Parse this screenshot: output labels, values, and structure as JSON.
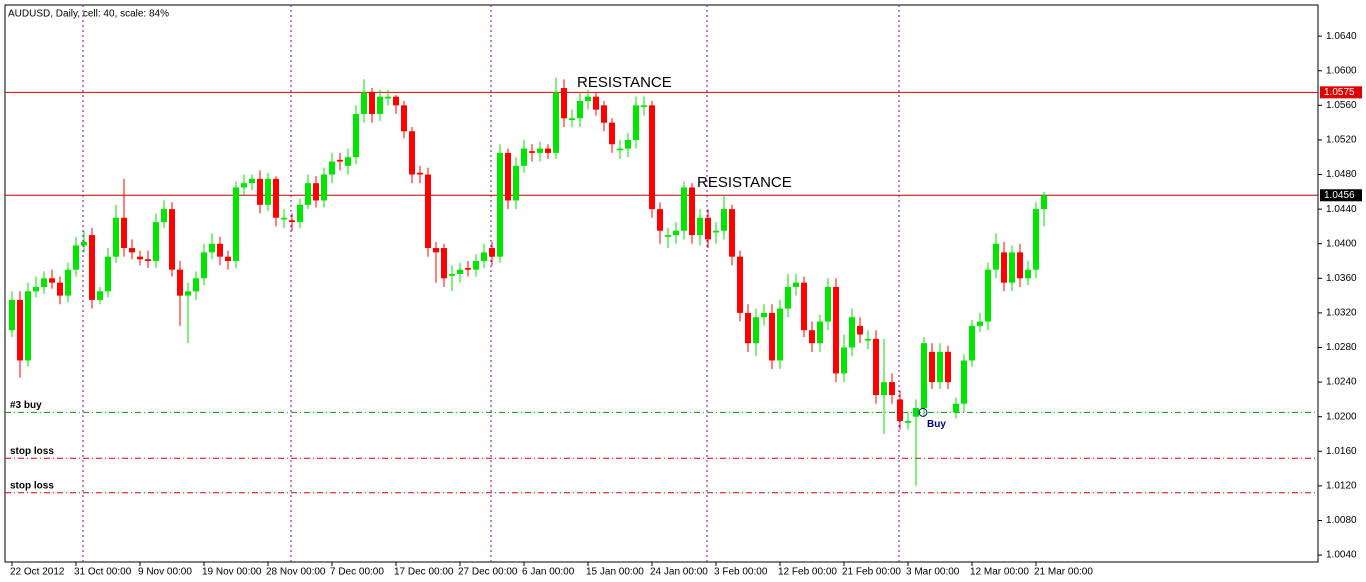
{
  "chart_data": {
    "type": "candlestick",
    "title": "AUDUSD, Daily, cell: 40, scale: 84%",
    "categories": [
      "22 Oct 2012",
      null,
      null,
      null,
      null,
      null,
      null,
      null,
      "31 Oct 00:00",
      null,
      null,
      null,
      null,
      null,
      null,
      null,
      "9 Nov 00:00",
      null,
      null,
      null,
      null,
      null,
      null,
      null,
      "19 Nov 00:00",
      null,
      null,
      null,
      null,
      null,
      null,
      null,
      "28 Nov 00:00",
      null,
      null,
      null,
      null,
      null,
      null,
      null,
      "7 Dec 00:00",
      null,
      null,
      null,
      null,
      null,
      null,
      null,
      "17 Dec 00:00",
      null,
      null,
      null,
      null,
      null,
      null,
      null,
      "27 Dec 00:00",
      null,
      null,
      null,
      null,
      null,
      null,
      null,
      "6 Jan 00:00",
      null,
      null,
      null,
      null,
      null,
      null,
      null,
      "15 Jan 00:00",
      null,
      null,
      null,
      null,
      null,
      null,
      null,
      "24 Jan 00:00",
      null,
      null,
      null,
      null,
      null,
      null,
      null,
      "3 Feb 00:00",
      null,
      null,
      null,
      null,
      null,
      null,
      null,
      "12 Feb 00:00",
      null,
      null,
      null,
      null,
      null,
      null,
      null,
      "21 Feb 00:00",
      null,
      null,
      null,
      null,
      null,
      null,
      null,
      "3 Mar 00:00",
      null,
      null,
      null,
      null,
      null,
      null,
      null,
      "12 Mar 00:00",
      null,
      null,
      null,
      null,
      null,
      null,
      null,
      "21 Mar 00:00",
      null
    ],
    "open": [
      1.03,
      1.0335,
      1.0265,
      1.0345,
      1.035,
      1.036,
      1.0355,
      1.034,
      1.037,
      1.0398,
      1.041,
      1.0335,
      1.0345,
      1.0385,
      1.043,
      1.0395,
      1.0385,
      1.0382,
      1.038,
      1.0425,
      1.044,
      1.037,
      1.034,
      1.0345,
      1.036,
      1.039,
      1.04,
      1.0385,
      1.038,
      1.0465,
      1.047,
      1.0475,
      1.0445,
      1.0475,
      1.0428,
      1.0427,
      1.0425,
      1.0445,
      1.047,
      1.045,
      1.048,
      1.0497,
      1.049,
      1.05,
      1.055,
      1.0575,
      1.055,
      1.0568,
      1.057,
      1.056,
      1.053,
      1.0482,
      1.048,
      1.0395,
      1.0395,
      1.0363,
      1.0365,
      1.0372,
      1.037,
      1.038,
      1.0395,
      1.0385,
      1.0505,
      1.045,
      1.049,
      1.0507,
      1.0505,
      1.051,
      1.0505,
      1.058,
      1.0543,
      1.0545,
      1.0565,
      1.057,
      1.056,
      1.054,
      1.0508,
      1.051,
      1.052,
      1.0558,
      1.056,
      1.044,
      1.0408,
      1.041,
      1.0415,
      1.0465,
      1.041,
      1.043,
      1.0413,
      1.0415,
      1.044,
      1.0385,
      1.032,
      1.0285,
      1.0315,
      1.032,
      1.0265,
      1.0325,
      1.035,
      1.0355,
      1.03,
      1.0285,
      1.031,
      1.035,
      1.025,
      1.028,
      1.0305,
      1.0288,
      1.029,
      1.0225,
      1.024,
      1.022,
      1.0193,
      1.02,
      1.021,
      1.0275,
      1.024,
      1.0275,
      1.0205,
      1.0215,
      1.0265,
      1.0305,
      1.031,
      1.037,
      1.039,
      1.0355,
      1.039,
      1.036,
      1.037,
      1.044
    ],
    "high": [
      1.0345,
      1.0345,
      1.0355,
      1.0362,
      1.0368,
      1.037,
      1.0362,
      1.0378,
      1.0408,
      1.0415,
      1.0418,
      1.035,
      1.0395,
      1.0445,
      1.0475,
      1.0405,
      1.0392,
      1.0392,
      1.0435,
      1.045,
      1.0448,
      1.038,
      1.0355,
      1.0368,
      1.04,
      1.0412,
      1.0408,
      1.0392,
      1.0472,
      1.048,
      1.048,
      1.0485,
      1.0482,
      1.0478,
      1.044,
      1.0435,
      1.0452,
      1.048,
      1.0478,
      1.0488,
      1.0505,
      1.0505,
      1.051,
      1.056,
      1.059,
      1.058,
      1.0578,
      1.0578,
      1.0572,
      1.0565,
      1.0535,
      1.049,
      1.0488,
      1.0402,
      1.04,
      1.0375,
      1.0378,
      1.038,
      1.0388,
      1.04,
      1.0402,
      1.0515,
      1.051,
      1.05,
      1.052,
      1.0515,
      1.0518,
      1.0515,
      1.0592,
      1.059,
      1.0555,
      1.0575,
      1.0578,
      1.0575,
      1.0565,
      1.0545,
      1.052,
      1.0528,
      1.057,
      1.057,
      1.0565,
      1.0448,
      1.0418,
      1.0425,
      1.0472,
      1.047,
      1.044,
      1.044,
      1.0425,
      1.0455,
      1.0445,
      1.0392,
      1.033,
      1.0325,
      1.033,
      1.033,
      1.0335,
      1.0365,
      1.0365,
      1.0362,
      1.031,
      1.0318,
      1.036,
      1.036,
      1.0295,
      1.0325,
      1.0315,
      1.03,
      1.03,
      1.029,
      1.025,
      1.023,
      1.0205,
      1.022,
      1.0292,
      1.0285,
      1.0285,
      1.0282,
      1.0222,
      1.0272,
      1.0312,
      1.032,
      1.0378,
      1.0412,
      1.0402,
      1.0398,
      1.04,
      1.038,
      1.0448,
      1.046
    ],
    "low": [
      1.0292,
      1.0245,
      1.0258,
      1.0338,
      1.0342,
      1.0348,
      1.033,
      1.0332,
      1.0362,
      1.039,
      1.0325,
      1.033,
      1.0338,
      1.0378,
      1.0385,
      1.0382,
      1.0375,
      1.0372,
      1.0372,
      1.0418,
      1.0362,
      1.0305,
      1.0285,
      1.0335,
      1.0352,
      1.0382,
      1.0375,
      1.037,
      1.0372,
      1.0455,
      1.0462,
      1.0435,
      1.0438,
      1.042,
      1.0418,
      1.0415,
      1.0418,
      1.044,
      1.0442,
      1.0442,
      1.047,
      1.0485,
      1.048,
      1.0492,
      1.054,
      1.054,
      1.0542,
      1.056,
      1.055,
      1.0522,
      1.047,
      1.047,
      1.0385,
      1.0355,
      1.035,
      1.0345,
      1.0355,
      1.0362,
      1.0362,
      1.0372,
      1.0375,
      1.0378,
      1.044,
      1.044,
      1.0482,
      1.0495,
      1.0495,
      1.0498,
      1.0498,
      1.0535,
      1.0535,
      1.0535,
      1.0555,
      1.0548,
      1.053,
      1.0505,
      1.0498,
      1.05,
      1.051,
      1.0548,
      1.043,
      1.04,
      1.0395,
      1.04,
      1.0405,
      1.04,
      1.0398,
      1.0395,
      1.04,
      1.0405,
      1.0375,
      1.031,
      1.0275,
      1.027,
      1.0305,
      1.0255,
      1.0255,
      1.0315,
      1.034,
      1.0292,
      1.0275,
      1.0275,
      1.03,
      1.024,
      1.024,
      1.027,
      1.0285,
      1.0278,
      1.0215,
      1.018,
      1.0215,
      1.0185,
      1.0185,
      1.012,
      1.02,
      1.0232,
      1.0232,
      1.0232,
      1.0198,
      1.0205,
      1.0258,
      1.0298,
      1.03,
      1.036,
      1.0345,
      1.0345,
      1.035,
      1.0352,
      1.036,
      1.042
    ],
    "close": [
      1.0335,
      1.0265,
      1.0345,
      1.035,
      1.036,
      1.0355,
      1.034,
      1.037,
      1.0398,
      1.0402,
      1.0335,
      1.0345,
      1.0385,
      1.043,
      1.0395,
      1.039,
      1.0382,
      1.038,
      1.0425,
      1.044,
      1.037,
      1.034,
      1.0345,
      1.036,
      1.039,
      1.04,
      1.0385,
      1.038,
      1.0465,
      1.047,
      1.0475,
      1.0445,
      1.0475,
      1.043,
      1.043,
      1.0425,
      1.0445,
      1.047,
      1.045,
      1.048,
      1.0495,
      1.0495,
      1.05,
      1.055,
      1.0575,
      1.055,
      1.057,
      1.057,
      1.056,
      1.053,
      1.048,
      1.048,
      1.0395,
      1.039,
      1.036,
      1.0365,
      1.037,
      1.037,
      1.038,
      1.039,
      1.0385,
      1.0505,
      1.045,
      1.049,
      1.051,
      1.0505,
      1.051,
      1.0505,
      1.0575,
      1.0545,
      1.0545,
      1.0565,
      1.057,
      1.0555,
      1.054,
      1.0515,
      1.051,
      1.052,
      1.056,
      1.056,
      1.044,
      1.0415,
      1.041,
      1.0415,
      1.0465,
      1.041,
      1.043,
      1.0405,
      1.0415,
      1.044,
      1.0385,
      1.032,
      1.0285,
      1.0315,
      1.032,
      1.0265,
      1.0325,
      1.035,
      1.0355,
      1.03,
      1.0285,
      1.031,
      1.035,
      1.025,
      1.028,
      1.0315,
      1.0295,
      1.029,
      1.0225,
      1.024,
      1.0225,
      1.0195,
      1.0195,
      1.021,
      1.0285,
      1.024,
      1.0275,
      1.024,
      1.0215,
      1.0265,
      1.0305,
      1.031,
      1.037,
      1.04,
      1.0355,
      1.039,
      1.036,
      1.037,
      1.044,
      1.0456
    ],
    "up_color": "#00e600",
    "down_color": "#ff0000",
    "ylim": [
      1.0032,
      1.0676
    ],
    "yticks": [
      {
        "value": 1.004,
        "label": "1.0040"
      },
      {
        "value": 1.008,
        "label": "1.0080"
      },
      {
        "value": 1.012,
        "label": "1.0120"
      },
      {
        "value": 1.016,
        "label": "1.0160"
      },
      {
        "value": 1.02,
        "label": "1.0200"
      },
      {
        "value": 1.024,
        "label": "1.0240"
      },
      {
        "value": 1.028,
        "label": "1.0280"
      },
      {
        "value": 1.032,
        "label": "1.0320"
      },
      {
        "value": 1.036,
        "label": "1.0360"
      },
      {
        "value": 1.04,
        "label": "1.0400"
      },
      {
        "value": 1.044,
        "label": "1.0440"
      },
      {
        "value": 1.048,
        "label": "1.0480"
      },
      {
        "value": 1.052,
        "label": "1.0520"
      },
      {
        "value": 1.056,
        "label": "1.0560"
      },
      {
        "value": 1.06,
        "label": "1.0600"
      },
      {
        "value": 1.064,
        "label": "1.0640"
      }
    ],
    "levels": [
      {
        "value": 1.0575,
        "label": "1.0575",
        "line_color": "#e00000",
        "box_color": "#e00000"
      },
      {
        "value": 1.0456,
        "label": "1.0456",
        "line_color": "#c00000",
        "box_color": "#000000"
      }
    ],
    "orders": [
      {
        "label": "#3 buy",
        "value": 1.0205,
        "color": "#00a000"
      },
      {
        "label": "stop loss",
        "value": 1.0152,
        "color": "#e00000"
      },
      {
        "label": "stop loss",
        "value": 1.0112,
        "color": "#e00000"
      }
    ],
    "annotations": [
      "RESISTANCE",
      "RESISTANCE"
    ],
    "buy_label": "Buy"
  }
}
